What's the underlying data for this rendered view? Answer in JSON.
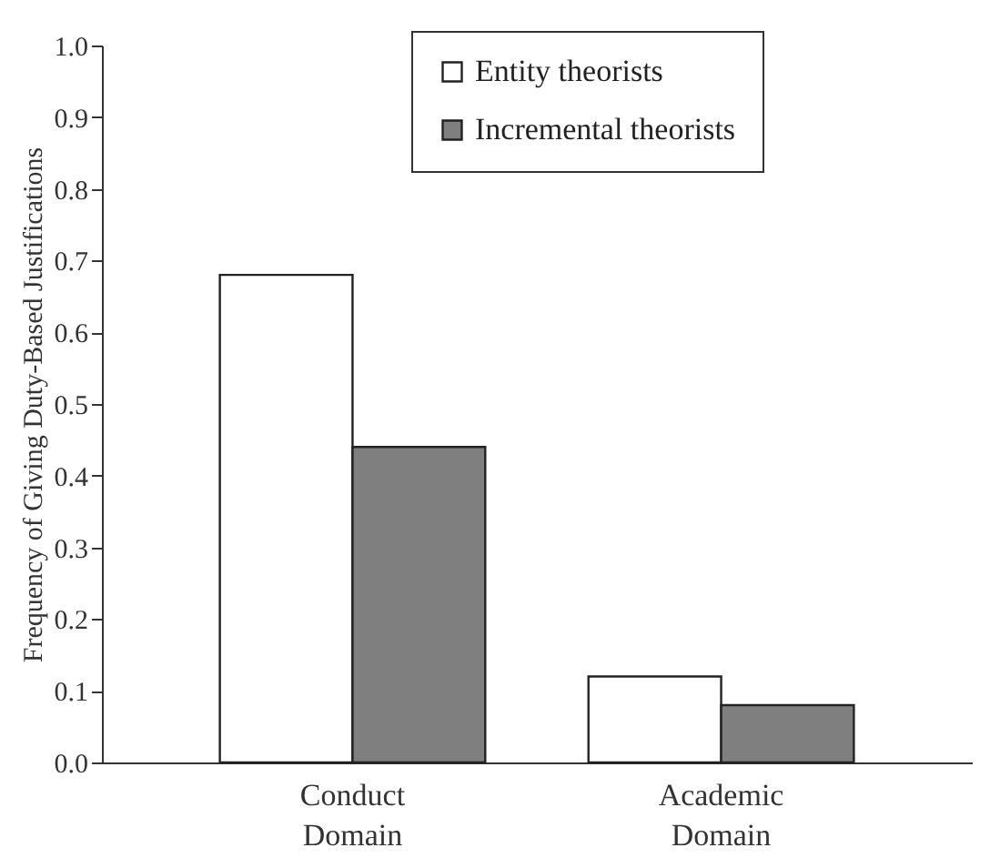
{
  "chart_data": {
    "type": "bar",
    "ylabel": "Frequency of Giving Duty-Based Justifications",
    "categories": [
      "Conduct Domain",
      "Academic Domain"
    ],
    "series": [
      {
        "name": "Entity theorists",
        "color": "#ffffff",
        "values": [
          0.68,
          0.12
        ]
      },
      {
        "name": "Incremental theorists",
        "color": "#7f7f7f",
        "values": [
          0.44,
          0.08
        ]
      }
    ],
    "ylim": [
      0,
      1.0
    ],
    "yticks": [
      {
        "value": 0,
        "label": "0.0"
      },
      {
        "value": 0.1,
        "label": "0.1"
      },
      {
        "value": 0.2,
        "label": "0.2"
      },
      {
        "value": 0.3,
        "label": "0.3"
      },
      {
        "value": 0.4,
        "label": "0.4"
      },
      {
        "value": 0.5,
        "label": "0.5"
      },
      {
        "value": 0.6,
        "label": "0.6"
      },
      {
        "value": 0.7,
        "label": "0.7"
      },
      {
        "value": 0.8,
        "label": "0.8"
      },
      {
        "value": 0.9,
        "label": "0.9"
      },
      {
        "value": 1.0,
        "label": "1.0"
      }
    ],
    "grid": false,
    "legend": "top right"
  }
}
